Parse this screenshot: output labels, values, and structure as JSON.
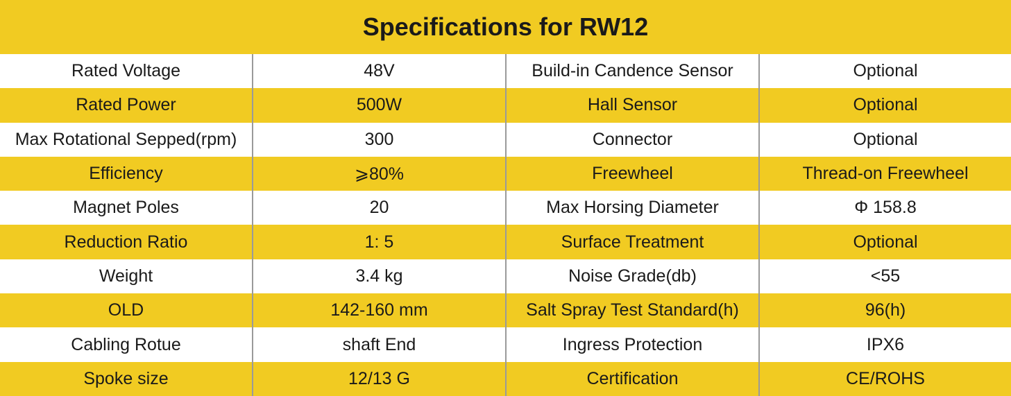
{
  "title": "Specifications for RW12",
  "rows": [
    [
      "Rated Voltage",
      "48V",
      "Build-in Candence Sensor",
      "Optional"
    ],
    [
      "Rated Power",
      "500W",
      "Hall Sensor",
      "Optional"
    ],
    [
      "Max Rotational Sepped(rpm)",
      "300",
      "Connector",
      "Optional"
    ],
    [
      "Efficiency",
      "⩾80%",
      "Freewheel",
      "Thread-on Freewheel"
    ],
    [
      "Magnet Poles",
      "20",
      "Max Horsing Diameter",
      "Φ 158.8"
    ],
    [
      "Reduction Ratio",
      "1: 5",
      "Surface Treatment",
      "Optional"
    ],
    [
      "Weight",
      "3.4 kg",
      "Noise Grade(db)",
      "<55"
    ],
    [
      "OLD",
      "142-160 mm",
      "Salt Spray Test Standard(h)",
      "96(h)"
    ],
    [
      "Cabling Rotue",
      "shaft End",
      "Ingress Protection",
      "IPX6"
    ],
    [
      "Spoke size",
      "12/13 G",
      "Certification",
      "CE/ROHS"
    ]
  ],
  "colors": {
    "accent": "#f1cb22",
    "divider": "#9a9a9a"
  }
}
